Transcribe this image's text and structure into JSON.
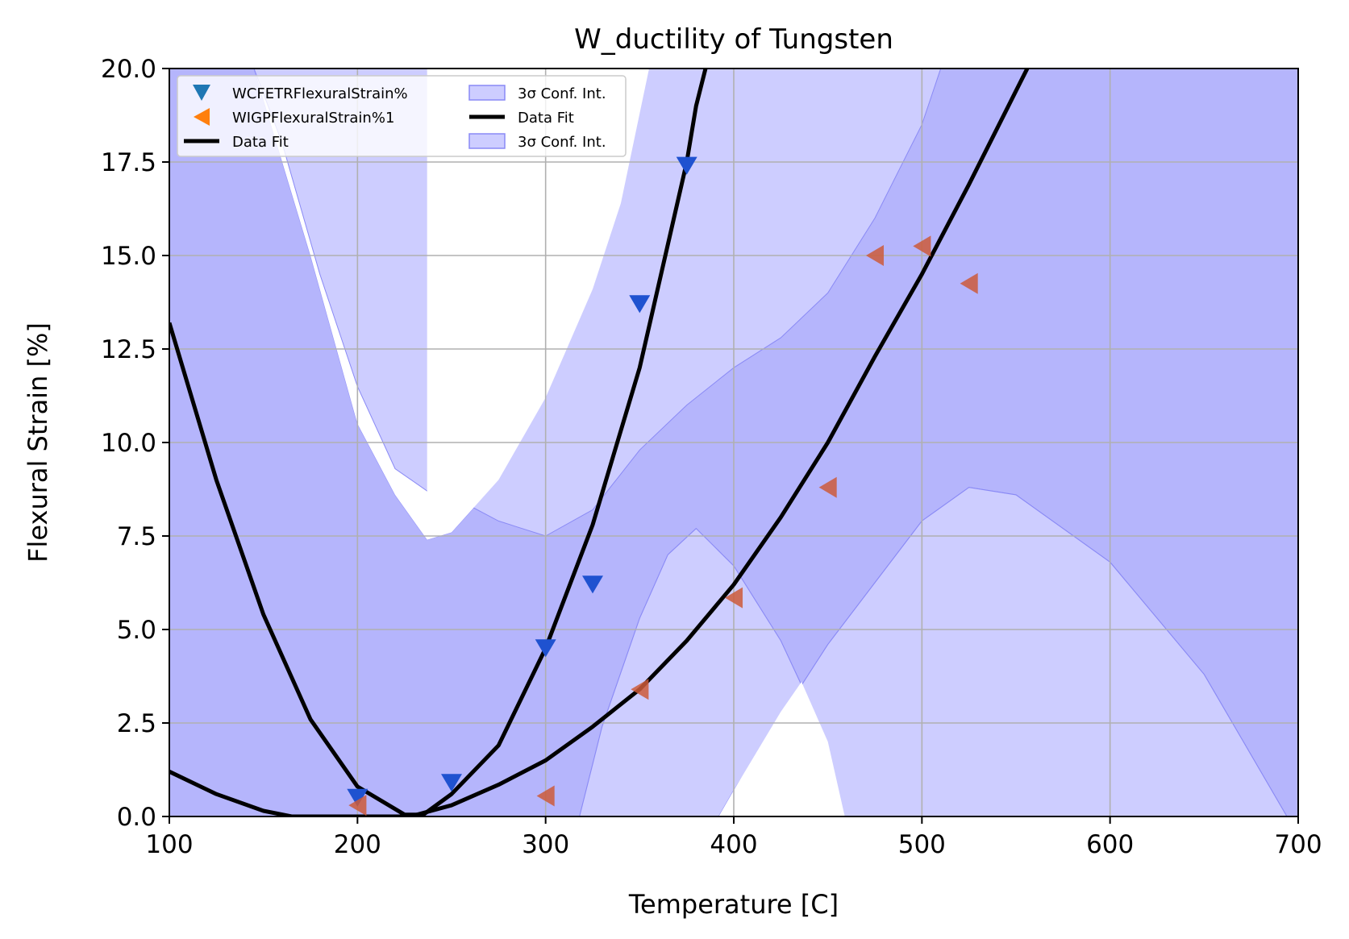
{
  "chart_data": {
    "type": "scatter",
    "title": "W_ductility of Tungsten",
    "xlabel": "Temperature [C]",
    "ylabel": "Flexural Strain [%]",
    "xlim": [
      100,
      700
    ],
    "ylim": [
      0,
      20
    ],
    "xticks": [
      "100",
      "200",
      "300",
      "400",
      "500",
      "600",
      "700"
    ],
    "yticks": [
      "0.0",
      "2.5",
      "5.0",
      "7.5",
      "10.0",
      "12.5",
      "15.0",
      "17.5",
      "20.0"
    ],
    "grid": true,
    "legend_position": "top-left",
    "colors": {
      "series_a_marker": "#1f52d0",
      "series_b_marker": "#cc5a3a",
      "band_fill": "#a3a3fc",
      "band_light": "#cdcdff",
      "band_edge": "#8a8af5",
      "fit_line": "#000000",
      "grid": "#b0b0b0"
    },
    "series": [
      {
        "name": "WCFETRFlexuralStrain%",
        "marker": "triangle-down",
        "x": [
          200,
          250,
          300,
          325,
          350,
          375
        ],
        "y": [
          0.5,
          0.9,
          4.5,
          6.2,
          13.7,
          17.4
        ]
      },
      {
        "name": "WIGPFlexuralStrain%1",
        "marker": "triangle-left",
        "x": [
          200,
          300,
          350,
          400,
          450,
          475,
          500,
          525
        ],
        "y": [
          0.3,
          0.55,
          3.4,
          5.85,
          8.8,
          15.0,
          15.25,
          14.25
        ]
      }
    ],
    "fits": [
      {
        "name": "Data Fit",
        "points": [
          [
            100,
            13.2
          ],
          [
            125,
            9.0
          ],
          [
            150,
            5.4
          ],
          [
            175,
            2.6
          ],
          [
            200,
            0.8
          ],
          [
            225,
            0.05
          ],
          [
            235,
            0.05
          ],
          [
            250,
            0.6
          ],
          [
            275,
            1.9
          ],
          [
            300,
            4.5
          ],
          [
            325,
            7.8
          ],
          [
            350,
            12.0
          ],
          [
            375,
            17.5
          ],
          [
            380,
            19.0
          ],
          [
            385,
            20.0
          ]
        ]
      },
      {
        "name": "Data Fit",
        "points": [
          [
            100,
            1.2
          ],
          [
            125,
            0.6
          ],
          [
            150,
            0.15
          ],
          [
            165,
            0.0
          ],
          [
            228,
            0.0
          ],
          [
            250,
            0.3
          ],
          [
            275,
            0.85
          ],
          [
            300,
            1.5
          ],
          [
            325,
            2.4
          ],
          [
            350,
            3.4
          ],
          [
            375,
            4.7
          ],
          [
            400,
            6.2
          ],
          [
            425,
            8.0
          ],
          [
            450,
            10.0
          ],
          [
            475,
            12.3
          ],
          [
            500,
            14.5
          ],
          [
            525,
            16.9
          ],
          [
            550,
            19.4
          ],
          [
            556,
            20.0
          ]
        ]
      }
    ],
    "bands": [
      {
        "name": "3σ Conf. Int.",
        "upper": [
          [
            100,
            20
          ],
          [
            145,
            20
          ],
          [
            175,
            15.0
          ],
          [
            200,
            10.5
          ],
          [
            220,
            8.6
          ],
          [
            237,
            7.4
          ],
          [
            250,
            7.6
          ],
          [
            275,
            9.0
          ],
          [
            300,
            11.2
          ],
          [
            325,
            14.1
          ],
          [
            340,
            16.4
          ],
          [
            350,
            18.8
          ],
          [
            355,
            20
          ],
          [
            700,
            20
          ]
        ],
        "lower": [
          [
            100,
            0
          ],
          [
            318,
            0
          ],
          [
            330,
            2.4
          ],
          [
            350,
            5.3
          ],
          [
            365,
            7.0
          ],
          [
            380,
            7.7
          ],
          [
            400,
            6.7
          ],
          [
            425,
            4.7
          ],
          [
            450,
            2.0
          ],
          [
            459,
            0
          ],
          [
            700,
            0
          ]
        ]
      },
      {
        "name": "3σ Conf. Int.",
        "upper": [
          [
            100,
            20
          ],
          [
            240,
            20
          ],
          [
            275,
            20
          ],
          [
            350,
            20
          ],
          [
            425,
            20
          ],
          [
            450,
            20
          ],
          [
            475,
            20
          ],
          [
            500,
            20
          ],
          [
            525,
            20
          ],
          [
            700,
            20
          ]
        ],
        "lower": [
          [
            100,
            0
          ],
          [
            392,
            0
          ],
          [
            400,
            0.7
          ],
          [
            450,
            4.6
          ],
          [
            500,
            7.9
          ],
          [
            525,
            8.8
          ],
          [
            550,
            8.6
          ],
          [
            600,
            6.8
          ],
          [
            650,
            3.8
          ],
          [
            694,
            0
          ],
          [
            700,
            0
          ]
        ]
      }
    ],
    "light_overlays": [
      {
        "upper": [
          [
            145,
            20
          ],
          [
            175,
            15.0
          ],
          [
            200,
            10.5
          ],
          [
            220,
            8.6
          ],
          [
            237,
            7.4
          ],
          [
            250,
            7.6
          ],
          [
            275,
            9.0
          ],
          [
            300,
            11.2
          ],
          [
            325,
            14.1
          ],
          [
            340,
            16.4
          ],
          [
            350,
            18.8
          ],
          [
            355,
            20
          ]
        ],
        "lower": [
          [
            145,
            20
          ],
          [
            160,
            18.0
          ],
          [
            180,
            14.5
          ],
          [
            200,
            11.5
          ],
          [
            220,
            9.3
          ],
          [
            240,
            8.6
          ],
          [
            260,
            8.3
          ],
          [
            275,
            7.9
          ],
          [
            300,
            7.5
          ],
          [
            325,
            8.2
          ],
          [
            350,
            9.8
          ],
          [
            375,
            11.0
          ],
          [
            400,
            12.0
          ],
          [
            425,
            12.8
          ],
          [
            450,
            14.0
          ],
          [
            475,
            16.0
          ],
          [
            500,
            18.5
          ],
          [
            510,
            20
          ]
        ],
        "upper_ext": [
          [
            270,
            20
          ],
          [
            350,
            20
          ],
          [
            510,
            20
          ]
        ]
      }
    ],
    "legend": {
      "col1": [
        "WCFETRFlexuralStrain%",
        "WIGPFlexuralStrain%1",
        "Data Fit"
      ],
      "col2": [
        "3σ Conf. Int.",
        "Data Fit",
        "3σ Conf. Int."
      ]
    }
  }
}
